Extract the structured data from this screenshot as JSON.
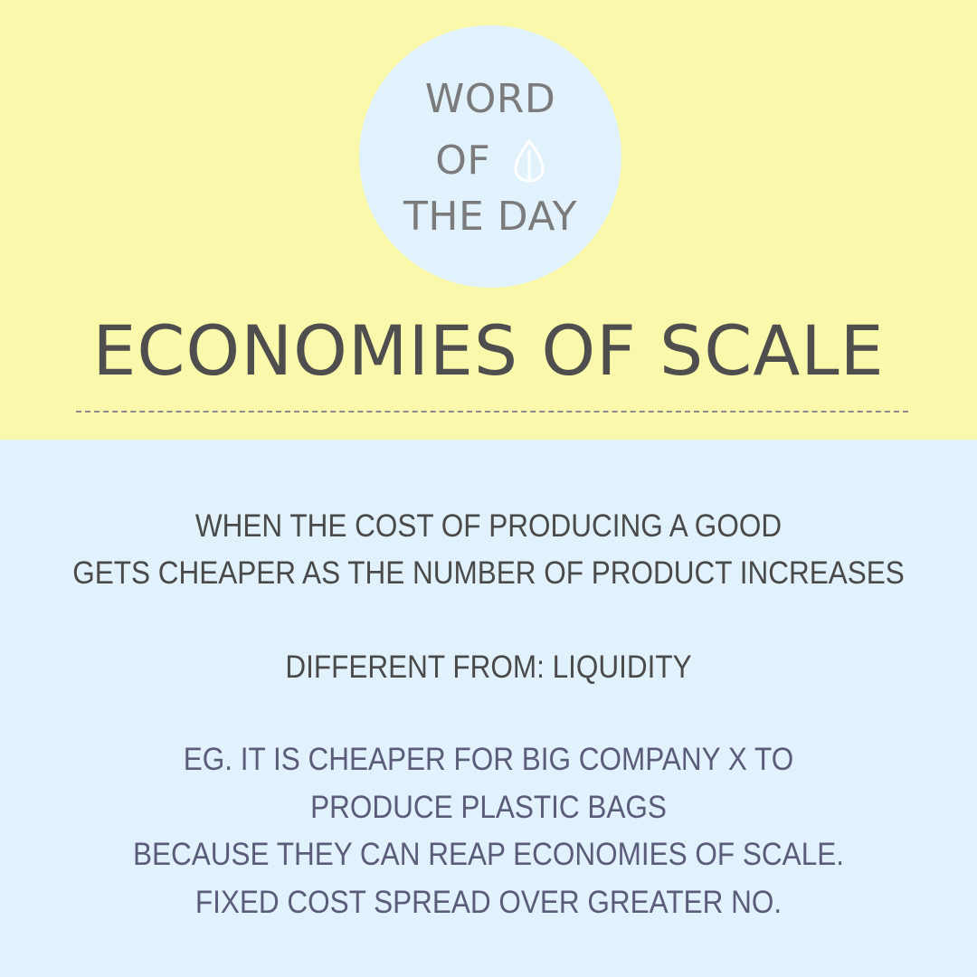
{
  "badge": {
    "line1": "WORD",
    "line2": "OF",
    "line3": "THE DAY",
    "icon": "seed-icon"
  },
  "headline": "ECONOMIES OF SCALE",
  "definition": {
    "lines": [
      "WHEN THE COST OF PRODUCING A GOOD",
      "GETS CHEAPER AS THE NUMBER OF PRODUCT INCREASES"
    ]
  },
  "different_from": "DIFFERENT FROM: LIQUIDITY",
  "example": {
    "lines": [
      "EG. IT IS CHEAPER FOR BIG COMPANY X TO",
      "PRODUCE PLASTIC BAGS",
      "BECAUSE THEY CAN REAP ECONOMIES OF SCALE.",
      "FIXED COST SPREAD OVER GREATER NO."
    ]
  },
  "colors": {
    "top_background": "#faf8aa",
    "bottom_background": "#e2f2fc",
    "badge_text": "#7b7b7b",
    "headline_text": "#4e4e4e",
    "body_text": "#4a4a4a",
    "example_text": "#5b5c7a"
  }
}
